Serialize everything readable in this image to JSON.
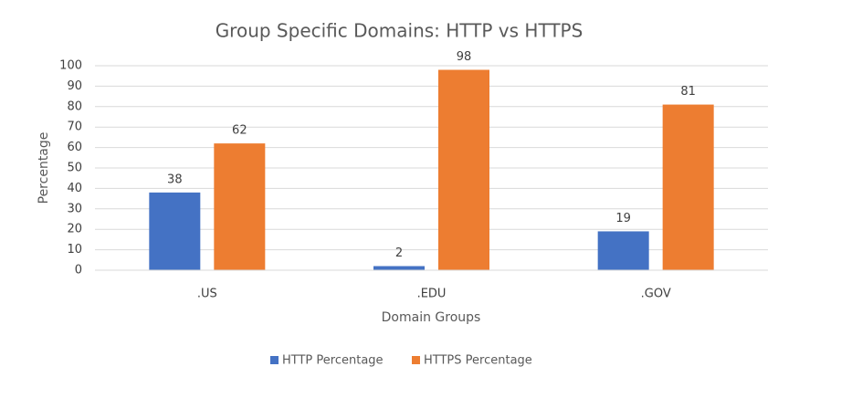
{
  "chart_data": {
    "type": "bar",
    "title": "Group Specific Domains: HTTP vs HTTPS",
    "x_label": "Domain Groups",
    "y_label": "Percentage",
    "categories": [
      ".US",
      ".EDU",
      ".GOV"
    ],
    "series": [
      {
        "name": "HTTP Percentage",
        "color": "#4472c4",
        "values": [
          38,
          2,
          19
        ]
      },
      {
        "name": "HTTPS Percentage",
        "color": "#ed7d31",
        "values": [
          62,
          98,
          81
        ]
      }
    ],
    "ylim": [
      0,
      100
    ],
    "yticks": [
      0,
      10,
      20,
      30,
      40,
      50,
      60,
      70,
      80,
      90,
      100
    ],
    "grid": true,
    "legend": "bottom",
    "data_labels": true
  }
}
